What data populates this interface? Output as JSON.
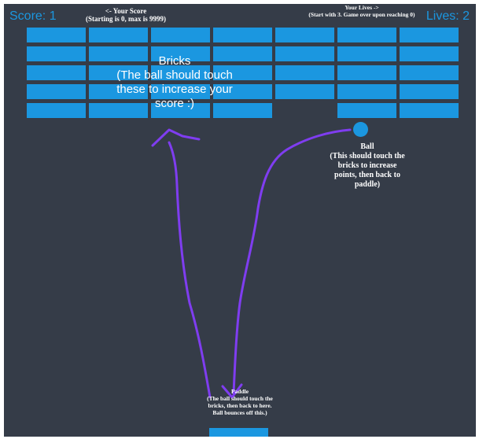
{
  "hud": {
    "score_text": "Score: 1",
    "lives_text": "Lives: 2",
    "score": 1,
    "lives": 2
  },
  "annotations": {
    "score_note": "<- Your Score\n(Starting is 0, max is 9999)",
    "lives_note": "Your Lives ->\n(Start with 3. Game over upon reaching 0)",
    "bricks_note": "Bricks\n(The ball should touch\nthese to increase your\nscore :)",
    "ball_note": "Ball\n(This should touch the\nbricks to increase\npoints, then back to\npaddle)",
    "paddle_note": "Paddle\n(The ball should touch the\nbricks, then back to here.\nBall bounces off this.)"
  },
  "bricks": {
    "rows": 5,
    "columns": 7,
    "missing": [
      [
        4,
        4
      ]
    ]
  },
  "colors": {
    "background": "#353c48",
    "accent": "#1b97e0",
    "annotation_stroke": "#7f3df0",
    "text": "#ffffff"
  }
}
